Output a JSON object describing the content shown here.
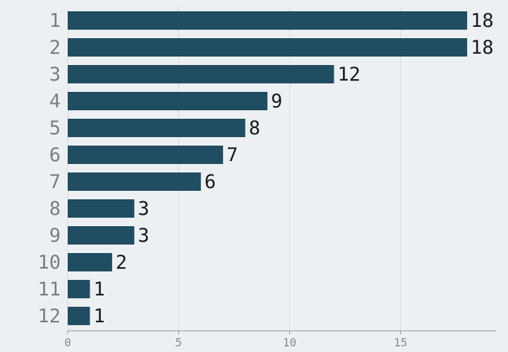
{
  "chart_data": {
    "type": "bar",
    "orientation": "horizontal",
    "categories": [
      "1",
      "2",
      "3",
      "4",
      "5",
      "6",
      "7",
      "8",
      "9",
      "10",
      "11",
      "12"
    ],
    "values": [
      18,
      18,
      12,
      9,
      8,
      7,
      6,
      3,
      3,
      2,
      1,
      1
    ],
    "data_labels": [
      "18",
      "18",
      "12",
      "9",
      "8",
      "7",
      "6",
      "3",
      "3",
      "2",
      "1",
      "1"
    ],
    "xticks": [
      "0",
      "5",
      "10",
      "15"
    ],
    "xlim": [
      0,
      19.3
    ],
    "title": "",
    "xlabel": "",
    "ylabel": "",
    "grid": "vertical",
    "legend": "none"
  },
  "colors": {
    "background": "#edf0f3",
    "bar": "#204d61",
    "grid": "#d6dadd",
    "axis": "#8f9397"
  }
}
